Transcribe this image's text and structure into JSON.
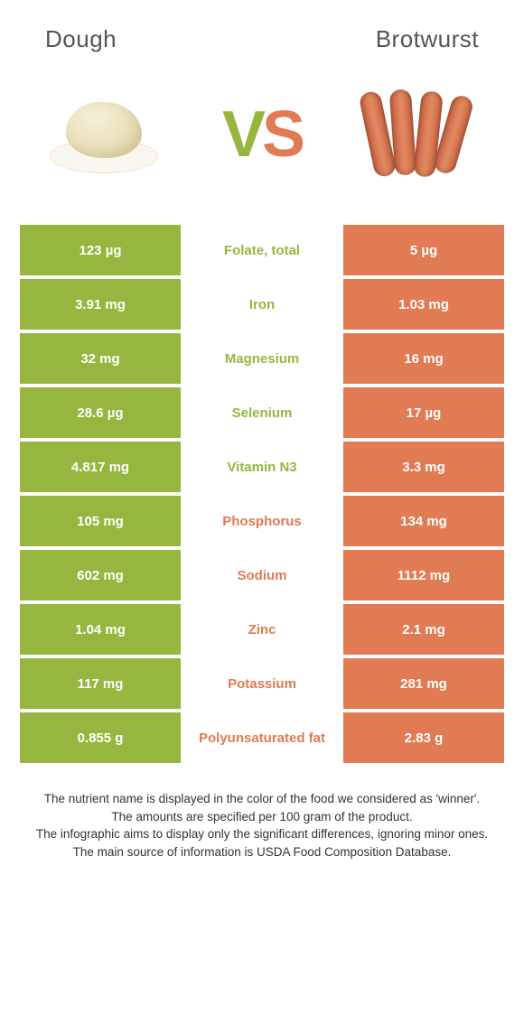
{
  "header": {
    "left_title": "Dough",
    "right_title": "Brotwurst"
  },
  "colors": {
    "left": "#97b63f",
    "right": "#e07b53",
    "mid_bg": "#ffffff",
    "text_white": "#ffffff"
  },
  "vs": {
    "v": "V",
    "s": "S"
  },
  "rows": [
    {
      "left": "123 µg",
      "label": "Folate, total",
      "right": "5 µg",
      "winner": "left"
    },
    {
      "left": "3.91 mg",
      "label": "Iron",
      "right": "1.03 mg",
      "winner": "left"
    },
    {
      "left": "32 mg",
      "label": "Magnesium",
      "right": "16 mg",
      "winner": "left"
    },
    {
      "left": "28.6 µg",
      "label": "Selenium",
      "right": "17 µg",
      "winner": "left"
    },
    {
      "left": "4.817 mg",
      "label": "Vitamin N3",
      "right": "3.3 mg",
      "winner": "left"
    },
    {
      "left": "105 mg",
      "label": "Phosphorus",
      "right": "134 mg",
      "winner": "right"
    },
    {
      "left": "602 mg",
      "label": "Sodium",
      "right": "1112 mg",
      "winner": "right"
    },
    {
      "left": "1.04 mg",
      "label": "Zinc",
      "right": "2.1 mg",
      "winner": "right"
    },
    {
      "left": "117 mg",
      "label": "Potassium",
      "right": "281 mg",
      "winner": "right"
    },
    {
      "left": "0.855 g",
      "label": "Polyunsaturated fat",
      "right": "2.83 g",
      "winner": "right"
    }
  ],
  "footnotes": [
    "The nutrient name is displayed in the color of the food we considered as 'winner'.",
    "The amounts are specified per 100 gram of the product.",
    "The infographic aims to display only the significant differences, ignoring minor ones.",
    "The main source of information is USDA Food Composition Database."
  ]
}
